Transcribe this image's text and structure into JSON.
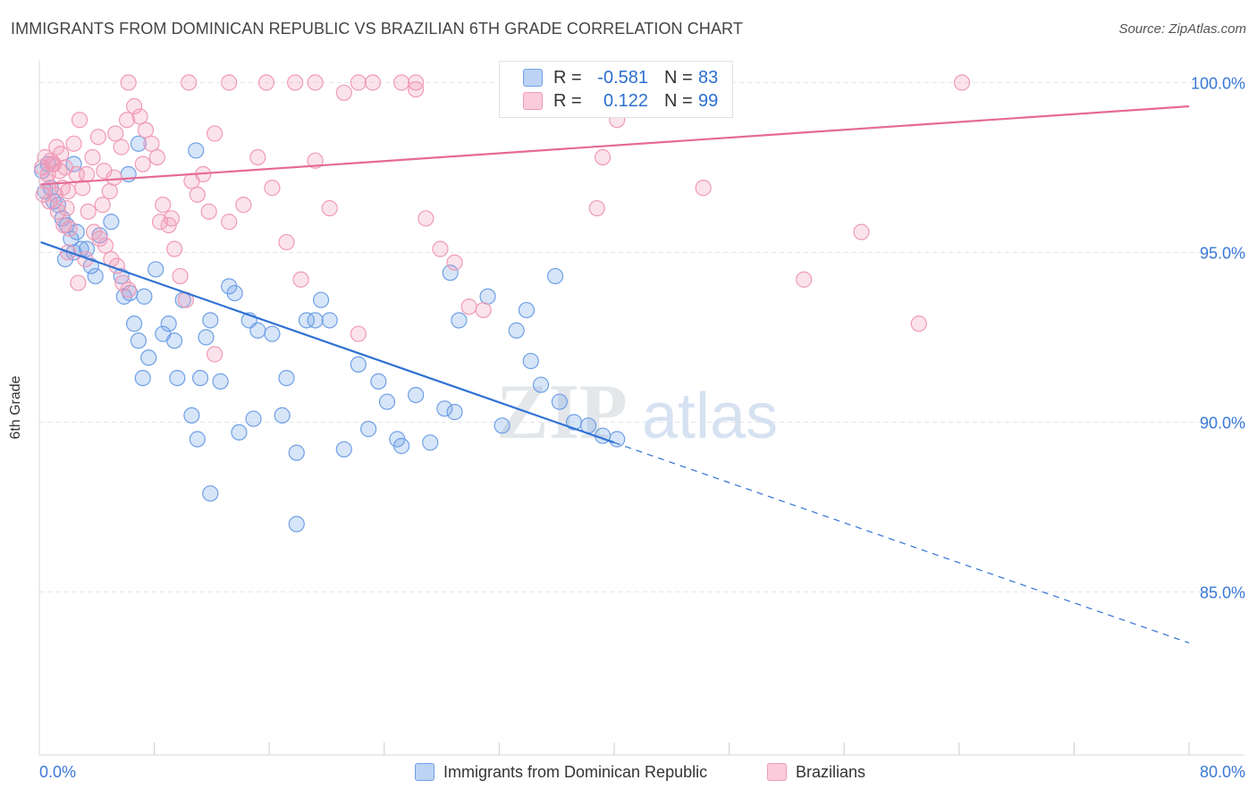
{
  "title": "IMMIGRANTS FROM DOMINICAN REPUBLIC VS BRAZILIAN 6TH GRADE CORRELATION CHART",
  "source": "Source: ZipAtlas.com",
  "watermark": {
    "zip": "ZIP",
    "atlas": "atlas"
  },
  "colors": {
    "blue": "#6ea0e6",
    "blue_line": "#2f72d4",
    "pink": "#f09ab8",
    "pink_line": "#e56a92",
    "tick_label": "#3a78d6"
  },
  "legend": {
    "rows": [
      {
        "series": "blue",
        "r_label": "R =",
        "r_value": "-0.581",
        "n_label": "N =",
        "n_value": "83"
      },
      {
        "series": "pink",
        "r_label": "R =",
        "r_value": "0.122",
        "n_label": "N =",
        "n_value": "99"
      }
    ]
  },
  "chart_data": {
    "type": "scatter",
    "ylabel": "6th Grade",
    "xlim": [
      0,
      80
    ],
    "ylim": [
      80.2,
      100.8
    ],
    "x_tick_labels": [
      "0.0%",
      "80.0%"
    ],
    "y_ticks": [
      {
        "value": 85,
        "label": "85.0%"
      },
      {
        "value": 90,
        "label": "90.0%"
      },
      {
        "value": 95,
        "label": "95.0%"
      },
      {
        "value": 100,
        "label": "100.0%"
      }
    ],
    "grid": true,
    "legend_placement": "bottom-center",
    "series": [
      {
        "name": "Immigrants from Dominican Republic",
        "color": "#6ea0e6",
        "trend": {
          "x0": 0.1,
          "y0": 95.3,
          "x1": 40,
          "y1": 89.4,
          "dash_x1": 80,
          "dash_y1": 83.5
        },
        "points": [
          [
            0.2,
            97.4
          ],
          [
            0.4,
            96.8
          ],
          [
            0.6,
            97.6
          ],
          [
            0.8,
            96.9
          ],
          [
            1.0,
            96.5
          ],
          [
            1.3,
            96.4
          ],
          [
            1.6,
            96.0
          ],
          [
            1.9,
            95.8
          ],
          [
            2.2,
            95.4
          ],
          [
            2.6,
            95.6
          ],
          [
            2.9,
            95.1
          ],
          [
            3.3,
            95.1
          ],
          [
            3.6,
            94.6
          ],
          [
            1.8,
            94.8
          ],
          [
            2.4,
            95.0
          ],
          [
            3.9,
            94.3
          ],
          [
            4.2,
            95.5
          ],
          [
            5.0,
            95.9
          ],
          [
            5.7,
            94.3
          ],
          [
            5.9,
            93.7
          ],
          [
            6.3,
            93.8
          ],
          [
            6.6,
            92.9
          ],
          [
            6.9,
            92.4
          ],
          [
            7.3,
            93.7
          ],
          [
            7.6,
            91.9
          ],
          [
            8.1,
            94.5
          ],
          [
            8.6,
            92.6
          ],
          [
            9.0,
            92.9
          ],
          [
            9.4,
            92.4
          ],
          [
            10.0,
            93.6
          ],
          [
            11.2,
            91.3
          ],
          [
            11.6,
            92.5
          ],
          [
            11.9,
            93.0
          ],
          [
            12.6,
            91.2
          ],
          [
            13.2,
            94.0
          ],
          [
            13.6,
            93.8
          ],
          [
            14.6,
            93.0
          ],
          [
            15.2,
            92.7
          ],
          [
            16.2,
            92.6
          ],
          [
            16.9,
            90.2
          ],
          [
            17.2,
            91.3
          ],
          [
            17.9,
            89.1
          ],
          [
            18.6,
            93.0
          ],
          [
            19.2,
            93.0
          ],
          [
            19.6,
            93.6
          ],
          [
            20.2,
            93.0
          ],
          [
            21.2,
            89.2
          ],
          [
            22.2,
            91.7
          ],
          [
            22.9,
            89.8
          ],
          [
            23.6,
            91.2
          ],
          [
            24.2,
            90.6
          ],
          [
            25.2,
            89.3
          ],
          [
            26.2,
            90.8
          ],
          [
            27.2,
            89.4
          ],
          [
            28.2,
            90.4
          ],
          [
            28.6,
            94.4
          ],
          [
            29.2,
            93.0
          ],
          [
            31.2,
            93.7
          ],
          [
            32.2,
            89.9
          ],
          [
            33.2,
            92.7
          ],
          [
            34.2,
            91.8
          ],
          [
            36.2,
            90.6
          ],
          [
            37.2,
            90.0
          ],
          [
            38.2,
            89.9
          ],
          [
            39.2,
            89.6
          ],
          [
            40.2,
            89.5
          ],
          [
            7.2,
            91.3
          ],
          [
            9.6,
            91.3
          ],
          [
            10.6,
            90.2
          ],
          [
            11.0,
            89.5
          ],
          [
            11.9,
            87.9
          ],
          [
            13.9,
            89.7
          ],
          [
            14.9,
            90.1
          ],
          [
            17.9,
            87.0
          ],
          [
            24.9,
            89.5
          ],
          [
            28.9,
            90.3
          ],
          [
            33.9,
            93.3
          ],
          [
            34.9,
            91.1
          ],
          [
            35.9,
            94.3
          ],
          [
            10.9,
            98.0
          ],
          [
            6.9,
            98.2
          ],
          [
            6.2,
            97.3
          ],
          [
            2.4,
            97.6
          ]
        ]
      },
      {
        "name": "Brazilians",
        "color": "#f09ab8",
        "trend": {
          "x0": 0.1,
          "y0": 97.0,
          "x1": 80,
          "y1": 99.3
        },
        "points": [
          [
            0.2,
            97.5
          ],
          [
            0.4,
            97.8
          ],
          [
            0.6,
            97.3
          ],
          [
            0.8,
            97.7
          ],
          [
            1.0,
            97.6
          ],
          [
            1.2,
            98.1
          ],
          [
            1.4,
            97.4
          ],
          [
            1.6,
            96.9
          ],
          [
            1.8,
            97.5
          ],
          [
            2.0,
            96.8
          ],
          [
            0.3,
            96.7
          ],
          [
            0.5,
            97.1
          ],
          [
            0.7,
            96.5
          ],
          [
            0.9,
            97.6
          ],
          [
            1.1,
            96.7
          ],
          [
            1.3,
            96.2
          ],
          [
            1.5,
            97.9
          ],
          [
            1.7,
            95.8
          ],
          [
            1.9,
            96.3
          ],
          [
            2.1,
            95.7
          ],
          [
            2.4,
            98.2
          ],
          [
            2.8,
            98.9
          ],
          [
            3.3,
            97.3
          ],
          [
            3.7,
            97.8
          ],
          [
            4.1,
            98.4
          ],
          [
            4.5,
            97.4
          ],
          [
            4.9,
            96.8
          ],
          [
            5.3,
            98.5
          ],
          [
            5.7,
            98.1
          ],
          [
            6.1,
            98.9
          ],
          [
            2.6,
            97.3
          ],
          [
            3.0,
            96.9
          ],
          [
            3.4,
            96.2
          ],
          [
            3.8,
            95.6
          ],
          [
            4.2,
            95.4
          ],
          [
            4.6,
            95.2
          ],
          [
            5.0,
            94.8
          ],
          [
            5.4,
            94.6
          ],
          [
            5.8,
            94.1
          ],
          [
            6.2,
            93.9
          ],
          [
            6.6,
            99.3
          ],
          [
            7.0,
            99.0
          ],
          [
            7.4,
            98.6
          ],
          [
            7.8,
            98.2
          ],
          [
            8.2,
            97.8
          ],
          [
            8.6,
            96.4
          ],
          [
            9.0,
            95.8
          ],
          [
            9.4,
            95.1
          ],
          [
            9.8,
            94.3
          ],
          [
            10.2,
            93.6
          ],
          [
            10.6,
            97.1
          ],
          [
            11.0,
            96.7
          ],
          [
            11.4,
            97.3
          ],
          [
            11.8,
            96.2
          ],
          [
            12.2,
            98.5
          ],
          [
            13.2,
            95.9
          ],
          [
            14.2,
            96.4
          ],
          [
            15.2,
            97.8
          ],
          [
            16.2,
            96.9
          ],
          [
            17.2,
            95.3
          ],
          [
            18.2,
            94.2
          ],
          [
            19.2,
            97.7
          ],
          [
            20.2,
            96.3
          ],
          [
            21.2,
            99.7
          ],
          [
            22.2,
            100.0
          ],
          [
            23.2,
            100.0
          ],
          [
            25.2,
            100.0
          ],
          [
            26.2,
            100.0
          ],
          [
            26.9,
            96.0
          ],
          [
            27.9,
            95.1
          ],
          [
            28.9,
            94.7
          ],
          [
            29.9,
            93.4
          ],
          [
            30.9,
            93.3
          ],
          [
            6.2,
            100.0
          ],
          [
            10.4,
            100.0
          ],
          [
            13.2,
            100.0
          ],
          [
            15.8,
            100.0
          ],
          [
            17.8,
            100.0
          ],
          [
            19.2,
            100.0
          ],
          [
            26.2,
            99.8
          ],
          [
            38.8,
            96.3
          ],
          [
            39.2,
            97.8
          ],
          [
            40.2,
            98.9
          ],
          [
            41.2,
            99.4
          ],
          [
            46.2,
            96.9
          ],
          [
            53.2,
            94.2
          ],
          [
            57.2,
            95.6
          ],
          [
            64.2,
            100.0
          ],
          [
            61.2,
            92.9
          ],
          [
            22.2,
            92.6
          ],
          [
            12.2,
            92.0
          ],
          [
            7.2,
            97.6
          ],
          [
            8.4,
            95.9
          ],
          [
            9.2,
            96.0
          ],
          [
            3.2,
            94.8
          ],
          [
            2.7,
            94.1
          ],
          [
            2.0,
            95.0
          ],
          [
            4.4,
            96.4
          ],
          [
            5.2,
            97.2
          ]
        ]
      }
    ]
  }
}
